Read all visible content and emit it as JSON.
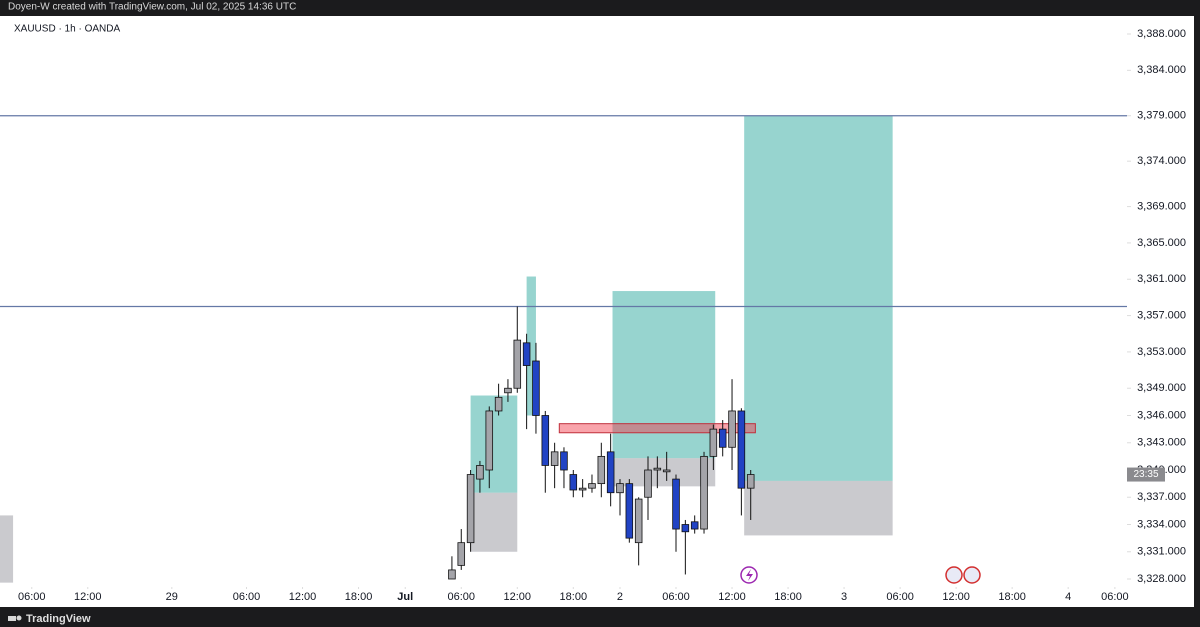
{
  "attribution": "Doyen-W created with TradingView.com, Jul 02, 2025 14:36 UTC",
  "footer": "TradingView",
  "chart_data": {
    "type": "candlestick",
    "title": "XAUUSD · 1h · OANDA",
    "up_color": "#a4a4a9",
    "down_color": "#2143c4",
    "x": [
      45,
      46,
      47,
      48,
      49,
      50,
      51,
      52,
      53,
      54,
      55,
      56,
      57,
      58,
      59,
      60,
      61,
      62,
      63,
      64,
      65,
      66,
      67,
      68,
      69,
      70,
      71,
      72,
      73,
      74,
      75,
      76,
      77
    ],
    "open": [
      3328,
      3329.5,
      3332,
      3339,
      3340,
      3346.5,
      3348.5,
      3349,
      3354,
      3352,
      3346,
      3340.5,
      3342,
      3339.5,
      3337.8,
      3338,
      3338.5,
      3342,
      3337.5,
      3338.5,
      3332,
      3337,
      3340,
      3339.8,
      3339,
      3334,
      3334.3,
      3333.5,
      3341.5,
      3344.5,
      3342.5,
      3346.5,
      3338
    ],
    "high": [
      3330.5,
      3333.5,
      3340,
      3341,
      3347,
      3349.5,
      3350,
      3358,
      3355,
      3354,
      3346.5,
      3343,
      3342.5,
      3340,
      3339,
      3339.5,
      3343,
      3344,
      3339,
      3339,
      3337,
      3341.5,
      3341.5,
      3342,
      3339.5,
      3334.5,
      3335,
      3342,
      3345,
      3345.5,
      3350,
      3346.8,
      3340
    ],
    "low": [
      3328,
      3329,
      3331,
      3337.5,
      3338,
      3346,
      3347.5,
      3348.5,
      3344.5,
      3344,
      3337.5,
      3338,
      3338,
      3337,
      3337,
      3337.5,
      3337,
      3336,
      3335,
      3332,
      3329.5,
      3334.5,
      3338,
      3338.8,
      3331,
      3328.5,
      3333,
      3333,
      3340,
      3341.5,
      3340,
      3335,
      3334.5
    ],
    "close": [
      3329,
      3332,
      3339.5,
      3340.5,
      3346.5,
      3348,
      3349,
      3354.3,
      3351.5,
      3346,
      3340.5,
      3342,
      3340,
      3337.8,
      3338,
      3338.5,
      3341.5,
      3337.5,
      3338.5,
      3332.5,
      3336.8,
      3340,
      3340.2,
      3340,
      3333.5,
      3333.2,
      3333.5,
      3341.5,
      3344.5,
      3342.5,
      3346.5,
      3338,
      3339.5
    ],
    "levels": [
      3379,
      3358
    ],
    "level_color": "#6478a6",
    "positions": [
      {
        "x0": 47,
        "x1": 52,
        "target": 3348.2,
        "entry": 3337.5,
        "stop": 3331
      },
      {
        "x0": 53,
        "x1": 54,
        "target": 3361.3,
        "entry": 3346,
        "stop": 3346
      },
      {
        "x0": 62.2,
        "x1": 73.2,
        "target": 3359.7,
        "entry": 3341.3,
        "stop": 3338.2
      },
      {
        "x0": 76.3,
        "x1": 92.2,
        "target": 3379,
        "entry": 3338.8,
        "stop": 3332.8
      },
      {
        "x0": -3.4,
        "x1": -2,
        "target": 3327.6,
        "entry": 3327.6,
        "stop": 3335
      }
    ],
    "zone": {
      "x0": 56.5,
      "x1": 77.5,
      "top": 3345.1,
      "bottom": 3344.1
    },
    "countdown": "23:35",
    "xlim": [
      -3.4,
      117.3
    ],
    "ylim": [
      3327.12,
      3389.98
    ],
    "yticks": [
      {
        "value": 3388,
        "label": "3,388.000"
      },
      {
        "value": 3384,
        "label": "3,384.000"
      },
      {
        "value": 3379,
        "label": "3,379.000"
      },
      {
        "value": 3374,
        "label": "3,374.000"
      },
      {
        "value": 3369,
        "label": "3,369.000"
      },
      {
        "value": 3365,
        "label": "3,365.000"
      },
      {
        "value": 3361,
        "label": "3,361.000"
      },
      {
        "value": 3357,
        "label": "3,357.000"
      },
      {
        "value": 3353,
        "label": "3,353.000"
      },
      {
        "value": 3349,
        "label": "3,349.000"
      },
      {
        "value": 3346,
        "label": "3,346.000"
      },
      {
        "value": 3343,
        "label": "3,343.000"
      },
      {
        "value": 3340,
        "label": "3,340.000"
      },
      {
        "value": 3337,
        "label": "3,337.000"
      },
      {
        "value": 3334,
        "label": "3,334.000"
      },
      {
        "value": 3331,
        "label": "3,331.000"
      },
      {
        "value": 3328,
        "label": "3,328.000"
      }
    ],
    "xticks": [
      {
        "value": 0,
        "label": "06:00"
      },
      {
        "value": 6,
        "label": "12:00"
      },
      {
        "value": 15,
        "label": "29"
      },
      {
        "value": 23,
        "label": "06:00"
      },
      {
        "value": 29,
        "label": "12:00"
      },
      {
        "value": 35,
        "label": "18:00"
      },
      {
        "value": 40,
        "label": "Jul"
      },
      {
        "value": 46,
        "label": "06:00"
      },
      {
        "value": 52,
        "label": "12:00"
      },
      {
        "value": 58,
        "label": "18:00"
      },
      {
        "value": 63,
        "label": "2"
      },
      {
        "value": 69,
        "label": "06:00"
      },
      {
        "value": 75,
        "label": "12:00"
      },
      {
        "value": 81,
        "label": "18:00"
      },
      {
        "value": 87,
        "label": "3"
      },
      {
        "value": 93,
        "label": "06:00"
      },
      {
        "value": 99,
        "label": "12:00"
      },
      {
        "value": 105,
        "label": "18:00"
      },
      {
        "value": 111,
        "label": "4"
      },
      {
        "value": 116,
        "label": "06:00"
      }
    ]
  }
}
